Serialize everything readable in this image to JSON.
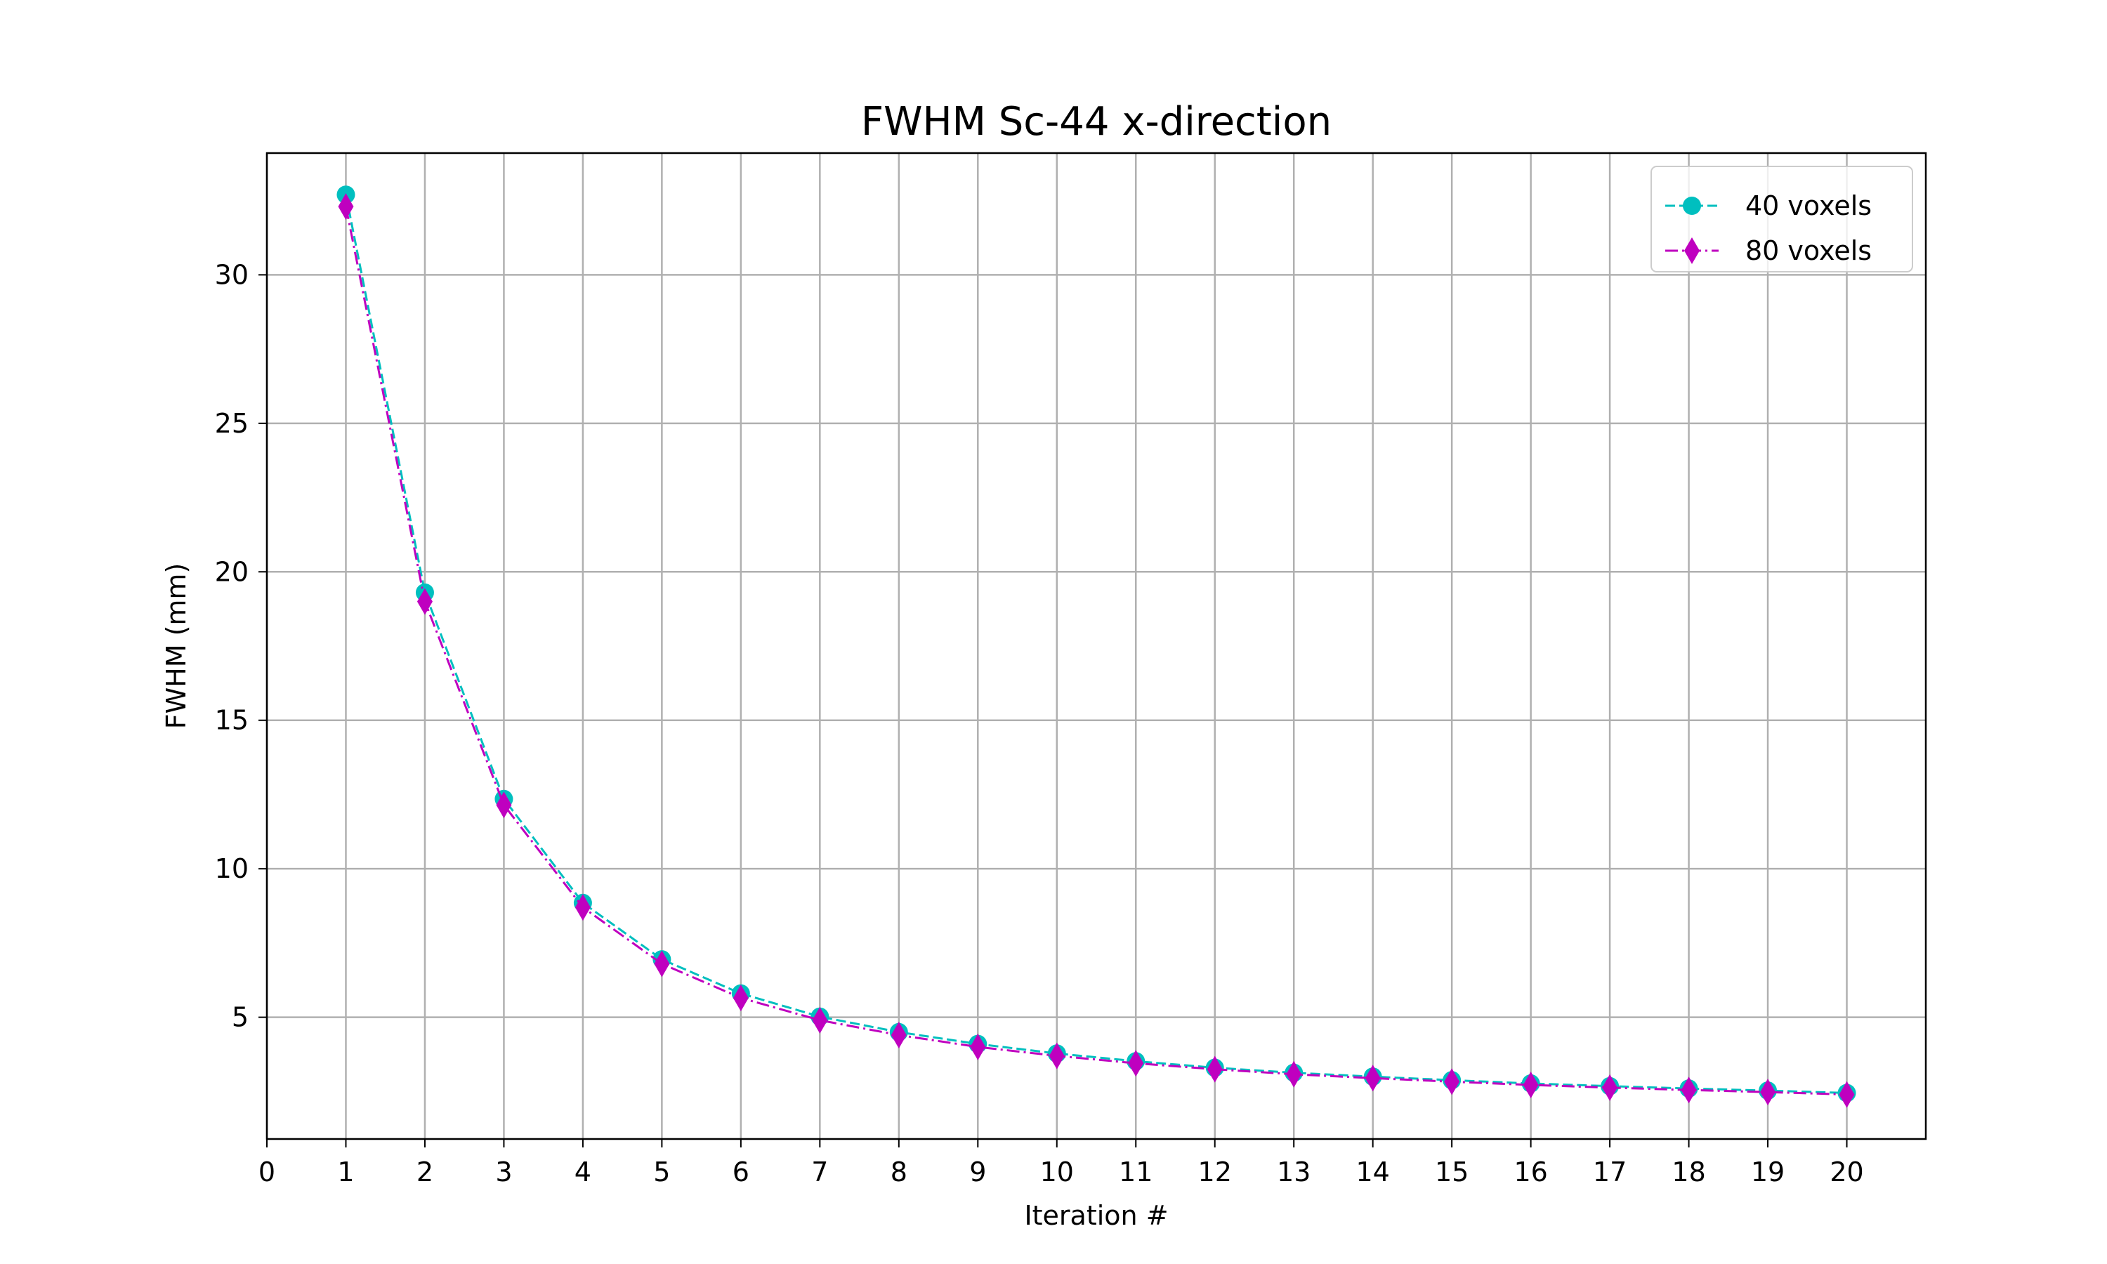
{
  "chart_data": {
    "type": "line",
    "title": "FWHM Sc-44 x-direction",
    "xlabel": "Iteration #",
    "ylabel": "FWHM (mm)",
    "xlim": [
      0,
      21
    ],
    "ylim": [
      0.9,
      34.1
    ],
    "xticks": [
      0,
      1,
      2,
      3,
      4,
      5,
      6,
      7,
      8,
      9,
      10,
      11,
      12,
      13,
      14,
      15,
      16,
      17,
      18,
      19,
      20
    ],
    "yticks": [
      5,
      10,
      15,
      20,
      25,
      30
    ],
    "grid": true,
    "legend_position": "top-right",
    "x": [
      1,
      2,
      3,
      4,
      5,
      6,
      7,
      8,
      9,
      10,
      11,
      12,
      13,
      14,
      15,
      16,
      17,
      18,
      19,
      20
    ],
    "series": [
      {
        "name": "40 voxels",
        "color": "#00bfbf",
        "marker": "circle",
        "linestyle": "dashed",
        "values": [
          32.7,
          19.3,
          12.35,
          8.85,
          6.95,
          5.8,
          5.02,
          4.5,
          4.1,
          3.78,
          3.52,
          3.3,
          3.13,
          3.0,
          2.88,
          2.77,
          2.68,
          2.6,
          2.53,
          2.45
        ]
      },
      {
        "name": "80 voxels",
        "color": "#bf00bf",
        "marker": "thin-diamond",
        "linestyle": "dashdot",
        "values": [
          32.3,
          19.0,
          12.15,
          8.7,
          6.8,
          5.65,
          4.9,
          4.4,
          4.0,
          3.7,
          3.45,
          3.25,
          3.08,
          2.95,
          2.83,
          2.72,
          2.63,
          2.55,
          2.48,
          2.4
        ]
      }
    ]
  }
}
